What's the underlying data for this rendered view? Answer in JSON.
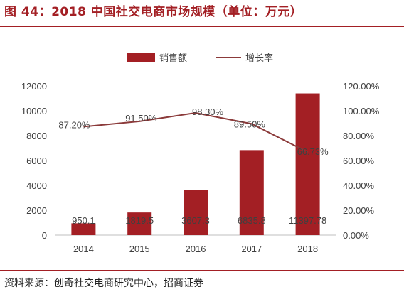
{
  "header": {
    "title": "图 44：2018 中国社交电商市场规模（单位：万元）"
  },
  "footer": {
    "source": "资料来源：创奇社交电商研究中心，招商证券"
  },
  "chart_data": {
    "type": "bar",
    "categories": [
      "2014",
      "2015",
      "2016",
      "2017",
      "2018"
    ],
    "series": [
      {
        "name": "销售额",
        "type": "bar",
        "axis": "left",
        "values": [
          950.1,
          1819.5,
          3607.3,
          6835.8,
          11397.78
        ],
        "labels": [
          "950.1",
          "1819.5",
          "3607.3",
          "6835.8",
          "11397.78"
        ],
        "color": "#a31f24"
      },
      {
        "name": "增长率",
        "type": "line",
        "axis": "right",
        "values": [
          87.2,
          91.5,
          98.3,
          89.5,
          66.73
        ],
        "labels": [
          "87.20%",
          "91.50%",
          "98.30%",
          "89.50%",
          "66.73%"
        ],
        "color": "#8b3a3a"
      }
    ],
    "left_axis": {
      "ylim": [
        0,
        12000
      ],
      "ticks": [
        "0",
        "2000",
        "4000",
        "6000",
        "8000",
        "10000",
        "12000"
      ]
    },
    "right_axis": {
      "ylim": [
        0,
        120
      ],
      "ticks": [
        "0.00%",
        "20.00%",
        "40.00%",
        "60.00%",
        "80.00%",
        "100.00%",
        "120.00%"
      ]
    },
    "legend": "top-center",
    "grid": false
  }
}
